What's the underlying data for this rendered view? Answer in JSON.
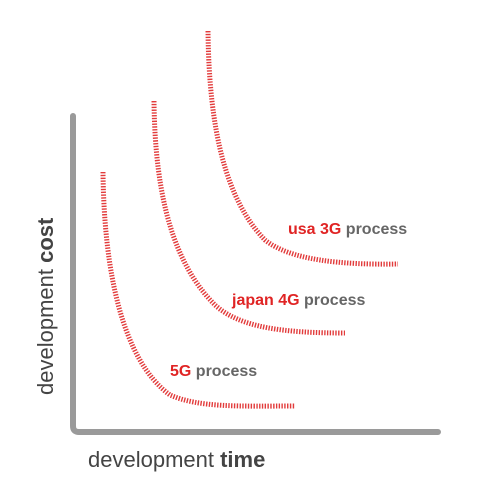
{
  "chart_data": {
    "type": "line",
    "title": "",
    "xlabel_regular": "development ",
    "xlabel_bold": "time",
    "ylabel_regular": "development ",
    "ylabel_bold": "cost",
    "grid": false,
    "legend": "none",
    "series": [
      {
        "label_accent": "usa 3G",
        "label_rest": " process",
        "color": "#e23b3b"
      },
      {
        "label_accent": "japan 4G",
        "label_rest": " process",
        "color": "#e23b3b"
      },
      {
        "label_accent": "5G",
        "label_rest": " process",
        "color": "#e23b3b"
      }
    ]
  },
  "colors": {
    "axis": "#9a9a9a",
    "accent": "#e02424",
    "text": "#666666"
  }
}
